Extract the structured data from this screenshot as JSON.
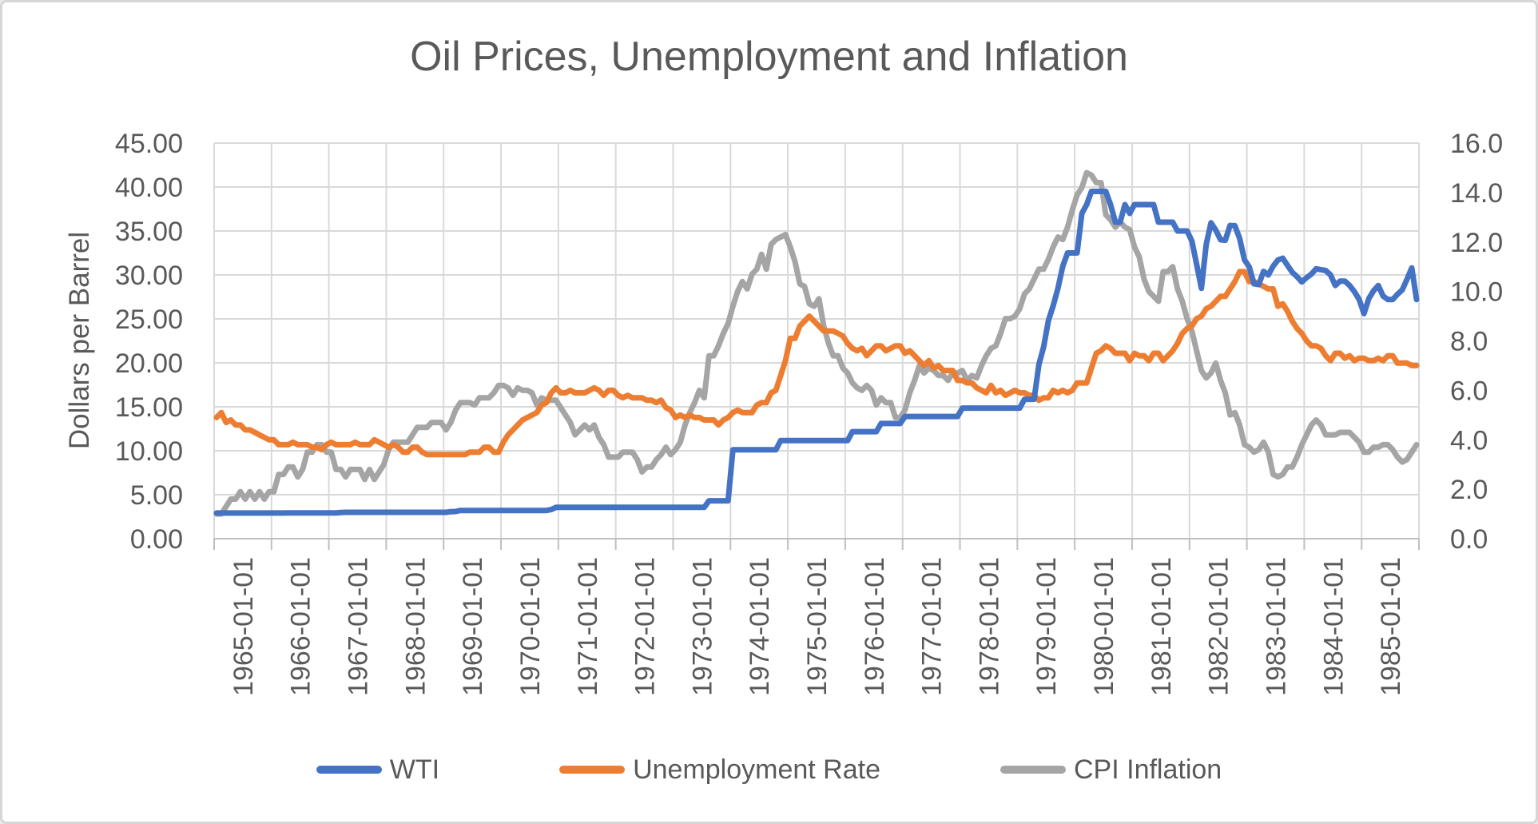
{
  "chart_data": {
    "type": "line",
    "title": "Oil Prices, Unemployment and Inflation",
    "x_start": "1965-01",
    "x_end": "1985-12",
    "x_frequency": "monthly",
    "points_per_series": 252,
    "x_tick_labels": [
      "1965-01-01",
      "1966-01-01",
      "1967-01-01",
      "1968-01-01",
      "1969-01-01",
      "1970-01-01",
      "1971-01-01",
      "1972-01-01",
      "1973-01-01",
      "1974-01-01",
      "1975-01-01",
      "1976-01-01",
      "1977-01-01",
      "1978-01-01",
      "1979-01-01",
      "1980-01-01",
      "1981-01-01",
      "1982-01-01",
      "1983-01-01",
      "1984-01-01",
      "1985-01-01"
    ],
    "left_axis": {
      "title": "Dollars per Barrel",
      "min": 0,
      "max": 45,
      "step": 5,
      "decimals": 2
    },
    "right_axis": {
      "title": "",
      "min": 0,
      "max": 16,
      "step": 2,
      "decimals": 1
    },
    "grid": true,
    "legend_position": "bottom",
    "colors": {
      "grid": "#D9D9D9",
      "axis": "#BFBFBF",
      "text": "#595959"
    },
    "series": [
      {
        "name": "WTI",
        "axis": "left",
        "color": "#4472C4",
        "values": [
          2.92,
          2.92,
          2.92,
          2.92,
          2.92,
          2.92,
          2.92,
          2.92,
          2.92,
          2.92,
          2.92,
          2.92,
          2.92,
          2.92,
          2.92,
          2.94,
          2.94,
          2.94,
          2.94,
          2.94,
          2.94,
          2.94,
          2.94,
          2.94,
          2.94,
          2.94,
          2.98,
          3.0,
          3.0,
          3.0,
          3.0,
          3.0,
          3.0,
          3.0,
          3.0,
          3.0,
          3.0,
          3.0,
          3.0,
          3.0,
          3.0,
          3.0,
          3.0,
          3.0,
          3.0,
          3.0,
          3.0,
          3.0,
          3.0,
          3.07,
          3.09,
          3.21,
          3.21,
          3.21,
          3.21,
          3.21,
          3.21,
          3.21,
          3.21,
          3.21,
          3.21,
          3.21,
          3.21,
          3.21,
          3.21,
          3.21,
          3.21,
          3.21,
          3.21,
          3.21,
          3.31,
          3.56,
          3.56,
          3.56,
          3.56,
          3.56,
          3.56,
          3.56,
          3.56,
          3.56,
          3.56,
          3.56,
          3.56,
          3.56,
          3.56,
          3.56,
          3.56,
          3.56,
          3.56,
          3.56,
          3.56,
          3.56,
          3.56,
          3.56,
          3.56,
          3.56,
          3.56,
          3.56,
          3.56,
          3.56,
          3.56,
          3.56,
          3.56,
          4.31,
          4.31,
          4.31,
          4.31,
          4.31,
          10.11,
          10.11,
          10.11,
          10.11,
          10.11,
          10.11,
          10.11,
          10.11,
          10.11,
          10.11,
          11.16,
          11.16,
          11.16,
          11.16,
          11.16,
          11.16,
          11.16,
          11.16,
          11.16,
          11.16,
          11.16,
          11.16,
          11.16,
          11.16,
          11.16,
          12.17,
          12.17,
          12.17,
          12.17,
          12.17,
          12.17,
          13.1,
          13.1,
          13.1,
          13.1,
          13.1,
          13.9,
          13.9,
          13.9,
          13.9,
          13.9,
          13.9,
          13.9,
          13.9,
          13.9,
          13.9,
          13.9,
          13.9,
          14.85,
          14.85,
          14.85,
          14.85,
          14.85,
          14.85,
          14.85,
          14.85,
          14.85,
          14.85,
          14.85,
          14.85,
          14.85,
          15.85,
          15.85,
          15.85,
          19.8,
          21.8,
          24.8,
          26.5,
          28.5,
          31.0,
          32.5,
          32.5,
          32.5,
          37.0,
          38.0,
          39.5,
          39.5,
          39.5,
          39.5,
          38.0,
          36.0,
          36.0,
          38.0,
          37.0,
          38.0,
          38.0,
          38.0,
          38.0,
          38.0,
          36.0,
          36.0,
          36.0,
          36.0,
          35.0,
          35.0,
          35.0,
          33.85,
          31.22,
          28.48,
          33.45,
          35.93,
          35.1,
          34.0,
          33.95,
          35.63,
          35.6,
          34.15,
          31.72,
          30.9,
          29.0,
          28.9,
          30.4,
          30.0,
          31.0,
          31.7,
          31.9,
          31.1,
          30.3,
          29.8,
          29.2,
          29.7,
          30.1,
          30.7,
          30.6,
          30.5,
          30.0,
          28.8,
          29.3,
          29.3,
          28.8,
          28.1,
          27.2,
          25.6,
          27.3,
          28.2,
          28.8,
          27.6,
          27.2,
          27.2,
          27.8,
          28.3,
          29.5,
          30.8,
          27.2
        ]
      },
      {
        "name": "Unemployment Rate",
        "axis": "right",
        "color": "#ED7D31",
        "values": [
          4.9,
          5.1,
          4.7,
          4.8,
          4.6,
          4.6,
          4.4,
          4.4,
          4.3,
          4.2,
          4.1,
          4.0,
          4.0,
          3.8,
          3.8,
          3.8,
          3.9,
          3.8,
          3.8,
          3.8,
          3.7,
          3.7,
          3.6,
          3.8,
          3.9,
          3.8,
          3.8,
          3.8,
          3.8,
          3.9,
          3.8,
          3.8,
          3.8,
          4.0,
          3.9,
          3.8,
          3.7,
          3.8,
          3.7,
          3.5,
          3.5,
          3.7,
          3.7,
          3.5,
          3.4,
          3.4,
          3.4,
          3.4,
          3.4,
          3.4,
          3.4,
          3.4,
          3.4,
          3.5,
          3.5,
          3.5,
          3.7,
          3.7,
          3.5,
          3.5,
          3.9,
          4.2,
          4.4,
          4.6,
          4.8,
          4.9,
          5.0,
          5.1,
          5.4,
          5.5,
          5.9,
          6.1,
          5.9,
          5.9,
          6.0,
          5.9,
          5.9,
          5.9,
          6.0,
          6.1,
          6.0,
          5.8,
          6.0,
          6.0,
          5.8,
          5.7,
          5.8,
          5.7,
          5.7,
          5.7,
          5.6,
          5.6,
          5.5,
          5.6,
          5.3,
          5.2,
          4.9,
          5.0,
          4.9,
          5.0,
          4.9,
          4.9,
          4.8,
          4.8,
          4.8,
          4.6,
          4.8,
          4.9,
          5.1,
          5.2,
          5.1,
          5.1,
          5.1,
          5.4,
          5.5,
          5.5,
          5.9,
          6.0,
          6.6,
          7.2,
          8.1,
          8.1,
          8.6,
          8.8,
          9.0,
          8.8,
          8.6,
          8.4,
          8.4,
          8.4,
          8.3,
          8.2,
          7.9,
          7.7,
          7.6,
          7.7,
          7.4,
          7.6,
          7.8,
          7.8,
          7.6,
          7.7,
          7.8,
          7.8,
          7.5,
          7.6,
          7.4,
          7.2,
          7.0,
          7.2,
          6.9,
          7.0,
          6.8,
          6.8,
          6.8,
          6.4,
          6.4,
          6.3,
          6.3,
          6.1,
          6.0,
          5.9,
          6.2,
          5.9,
          6.0,
          5.8,
          5.9,
          6.0,
          5.9,
          5.9,
          5.8,
          5.8,
          5.6,
          5.7,
          5.7,
          6.0,
          5.9,
          6.0,
          5.9,
          6.0,
          6.3,
          6.3,
          6.3,
          6.9,
          7.5,
          7.6,
          7.8,
          7.7,
          7.5,
          7.5,
          7.5,
          7.2,
          7.5,
          7.4,
          7.4,
          7.2,
          7.5,
          7.5,
          7.2,
          7.4,
          7.6,
          7.9,
          8.3,
          8.5,
          8.6,
          8.9,
          9.0,
          9.3,
          9.4,
          9.6,
          9.8,
          9.8,
          10.1,
          10.4,
          10.8,
          10.8,
          10.4,
          10.4,
          10.3,
          10.2,
          10.1,
          10.1,
          9.4,
          9.5,
          9.2,
          8.8,
          8.5,
          8.3,
          8.0,
          7.8,
          7.8,
          7.7,
          7.4,
          7.2,
          7.5,
          7.5,
          7.3,
          7.4,
          7.2,
          7.3,
          7.3,
          7.2,
          7.2,
          7.3,
          7.2,
          7.4,
          7.4,
          7.1,
          7.1,
          7.1,
          7.0,
          7.0
        ]
      },
      {
        "name": "CPI Inflation",
        "axis": "right",
        "color": "#A5A5A5",
        "values": [
          1.0,
          1.0,
          1.3,
          1.6,
          1.6,
          1.9,
          1.6,
          1.9,
          1.6,
          1.9,
          1.6,
          1.9,
          1.9,
          2.6,
          2.6,
          2.9,
          2.9,
          2.5,
          2.8,
          3.5,
          3.5,
          3.8,
          3.8,
          3.5,
          3.5,
          2.8,
          2.8,
          2.5,
          2.8,
          2.8,
          2.8,
          2.4,
          2.8,
          2.4,
          2.7,
          3.0,
          3.6,
          3.9,
          3.9,
          3.9,
          3.9,
          4.2,
          4.5,
          4.5,
          4.5,
          4.7,
          4.7,
          4.7,
          4.4,
          4.7,
          5.2,
          5.5,
          5.5,
          5.5,
          5.4,
          5.7,
          5.7,
          5.7,
          5.9,
          6.2,
          6.2,
          6.1,
          5.8,
          6.1,
          6.0,
          6.0,
          5.9,
          5.4,
          5.7,
          5.6,
          5.6,
          5.6,
          5.3,
          5.0,
          4.7,
          4.2,
          4.4,
          4.6,
          4.4,
          4.6,
          4.1,
          3.8,
          3.3,
          3.3,
          3.3,
          3.5,
          3.5,
          3.5,
          3.2,
          2.7,
          2.9,
          2.9,
          3.2,
          3.4,
          3.7,
          3.4,
          3.6,
          3.9,
          4.6,
          5.1,
          5.5,
          6.0,
          5.7,
          7.4,
          7.4,
          7.8,
          8.3,
          8.7,
          9.4,
          10.0,
          10.4,
          10.1,
          10.7,
          10.9,
          11.5,
          10.9,
          11.9,
          12.1,
          12.2,
          12.3,
          11.8,
          11.2,
          10.3,
          10.2,
          9.5,
          9.4,
          9.7,
          8.6,
          7.9,
          7.4,
          7.4,
          6.9,
          6.7,
          6.3,
          6.1,
          6.0,
          6.2,
          6.0,
          5.4,
          5.7,
          5.5,
          5.5,
          4.9,
          4.9,
          5.2,
          5.9,
          6.4,
          7.0,
          6.7,
          6.9,
          6.8,
          6.6,
          6.6,
          6.4,
          6.7,
          6.7,
          6.8,
          6.4,
          6.6,
          6.5,
          7.0,
          7.4,
          7.7,
          7.8,
          8.3,
          8.9,
          8.9,
          9.0,
          9.3,
          9.9,
          10.1,
          10.5,
          10.9,
          10.9,
          11.3,
          11.8,
          12.2,
          12.1,
          12.6,
          13.3,
          13.9,
          14.2,
          14.8,
          14.7,
          14.4,
          14.4,
          13.1,
          12.9,
          12.6,
          12.8,
          12.6,
          12.5,
          11.8,
          11.4,
          10.5,
          10.0,
          9.8,
          9.6,
          10.8,
          10.8,
          11.0,
          10.1,
          9.6,
          8.9,
          8.4,
          7.6,
          6.8,
          6.5,
          6.7,
          7.1,
          6.4,
          5.9,
          5.0,
          5.1,
          4.6,
          3.8,
          3.7,
          3.5,
          3.6,
          3.9,
          3.5,
          2.6,
          2.5,
          2.6,
          2.9,
          2.9,
          3.3,
          3.8,
          4.2,
          4.6,
          4.8,
          4.6,
          4.2,
          4.2,
          4.2,
          4.3,
          4.3,
          4.3,
          4.1,
          3.9,
          3.5,
          3.5,
          3.7,
          3.7,
          3.8,
          3.8,
          3.6,
          3.3,
          3.1,
          3.2,
          3.5,
          3.8
        ]
      }
    ]
  }
}
